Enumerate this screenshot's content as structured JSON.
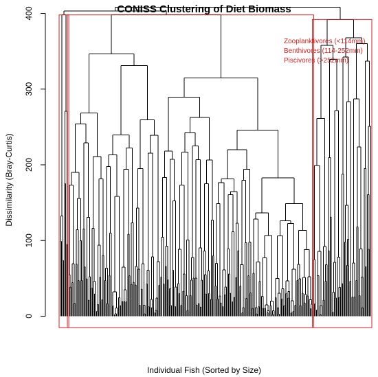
{
  "chart_data": {
    "type": "dendrogram",
    "title": "CONISS Clustering of Diet Biomass",
    "xlabel": "Individual Fish (Sorted by Size)",
    "ylabel": "Dissimilarity (Bray-Curtis)",
    "ylim": [
      -15,
      405
    ],
    "yticks": [
      0,
      100,
      200,
      300,
      400
    ],
    "ytick_labels": [
      "0",
      "100",
      "200",
      "300",
      "400"
    ],
    "leaf_count": 300,
    "root_height": 408,
    "groups": [
      {
        "name": "Zooplanktivores (<114mm)",
        "color": "#cc2222",
        "leaf_start": 1,
        "leaf_end": 8,
        "merge_height": 398
      },
      {
        "name": "Benthivores (114-252mm)",
        "color": "#cc2222",
        "leaf_start": 9,
        "leaf_end": 244,
        "merge_height": 398
      },
      {
        "name": "Piscivores (>252mm)",
        "color": "#cc2222",
        "leaf_start": 245,
        "leaf_end": 300,
        "merge_height": 392
      }
    ]
  }
}
